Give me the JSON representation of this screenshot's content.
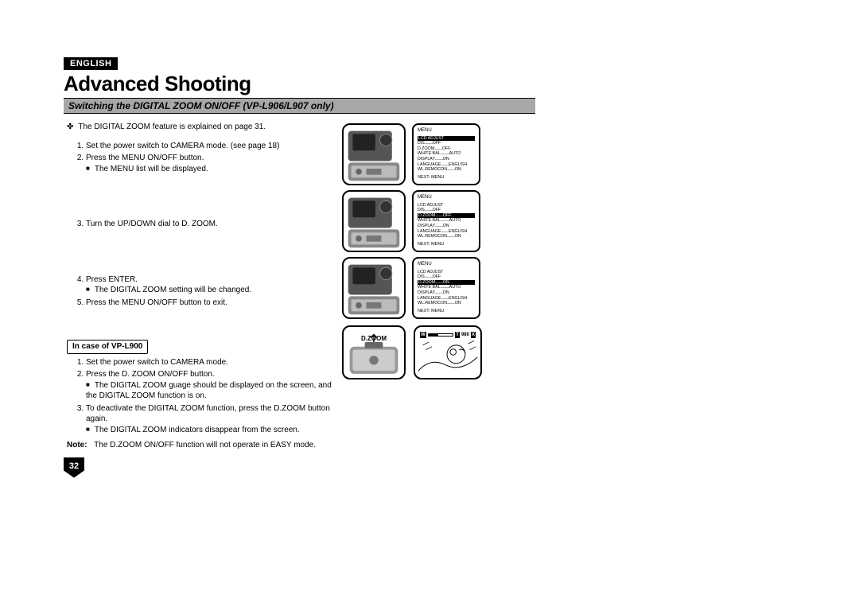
{
  "lang_badge": "ENGLISH",
  "title": "Advanced Shooting",
  "subtitle": "Switching the DIGITAL ZOOM ON/OFF (VP-L906/L907 only)",
  "intro": "The DIGITAL ZOOM feature is explained on page 31.",
  "steps_a": [
    "Set the power switch to CAMERA mode. (see page 18)",
    "Press the MENU ON/OFF button."
  ],
  "steps_a_sub": "The MENU list will be displayed.",
  "step3": "Turn the UP/DOWN dial to D. ZOOM.",
  "step4": "Press ENTER.",
  "step4_sub": "The DIGITAL ZOOM setting will be changed.",
  "step5": "Press the MENU ON/OFF button to exit.",
  "sub_head": "In case of VP-L900",
  "steps_b": [
    "Set the power switch to CAMERA mode.",
    "Press the D. ZOOM ON/OFF button."
  ],
  "steps_b_sub": [
    "The DIGITAL ZOOM guage should be displayed on the screen, and the DIGITAL ZOOM function is on."
  ],
  "step_b3": "To deactivate the DIGITAL ZOOM function, press the D.ZOOM button again.",
  "step_b3_sub": "The DIGITAL ZOOM indicators disappear from the screen.",
  "note_label": "Note:",
  "note_text": "The D.ZOOM ON/OFF function will not operate in EASY mode.",
  "page_number": "32",
  "menu_common": {
    "head": "MENU",
    "items": [
      {
        "label": "LCD ADJUST",
        "val": ""
      },
      {
        "label": "DIS",
        "val": "OFF"
      },
      {
        "label": "D.ZOOM",
        "val": "OFF"
      },
      {
        "label": "WHITE BAL.",
        "val": "AUTO"
      },
      {
        "label": "DISPLAY",
        "val": "ON"
      },
      {
        "label": "LANGUAGE",
        "val": "ENGLISH"
      },
      {
        "label": "WL.REMOCON",
        "val": "ON"
      }
    ],
    "foot": "NEXT: MENU"
  },
  "menu1_highlight_index": 0,
  "menu2_highlight_index": 2,
  "menu3": {
    "highlight_index": 2,
    "dzoom_val": "ON"
  },
  "dzoom_label": "D.ZOOM",
  "zoom_bar": {
    "left": "W",
    "right": "T",
    "num": "980",
    "x": "X"
  },
  "colors": {
    "bg": "#ffffff",
    "fg": "#000000",
    "subtitle_bg": "#a7a7a7"
  }
}
